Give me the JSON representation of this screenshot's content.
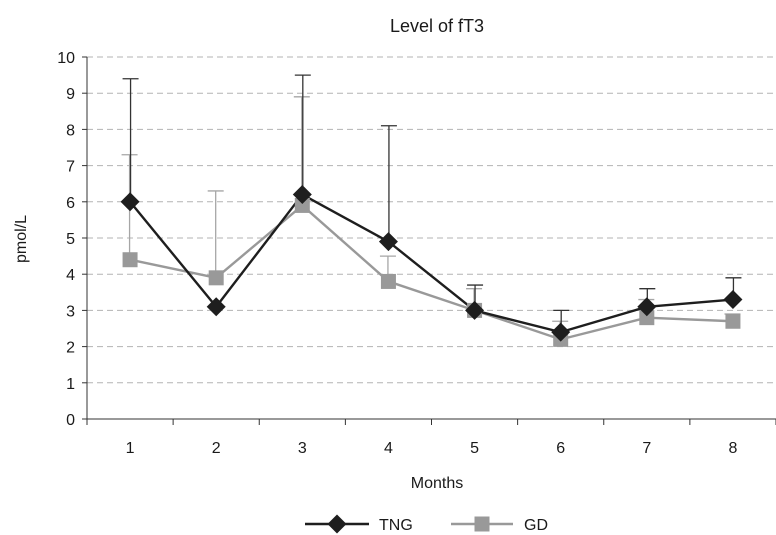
{
  "chart_data": {
    "type": "line",
    "title": "Level of fT3",
    "xlabel": "Months",
    "ylabel": "pmol/L",
    "categories": [
      "1",
      "2",
      "3",
      "4",
      "5",
      "6",
      "7",
      "8"
    ],
    "ylim": [
      0,
      10
    ],
    "yticks": [
      "0",
      "1",
      "2",
      "3",
      "4",
      "5",
      "6",
      "7",
      "8",
      "9",
      "10"
    ],
    "grid": "horizontal-dashed",
    "legend_position": "bottom",
    "series": [
      {
        "name": "TNG",
        "marker": "diamond",
        "color": "#1e1e1e",
        "values": [
          6.0,
          3.1,
          6.2,
          4.9,
          3.0,
          2.4,
          3.1,
          3.3
        ],
        "error_upper": [
          9.4,
          null,
          9.5,
          8.1,
          3.7,
          3.0,
          3.6,
          3.9
        ]
      },
      {
        "name": "GD",
        "marker": "square",
        "color": "#999999",
        "values": [
          4.4,
          3.9,
          5.9,
          3.8,
          3.0,
          2.2,
          2.8,
          2.7
        ],
        "error_upper": [
          7.3,
          6.3,
          8.9,
          4.5,
          3.6,
          2.7,
          3.3,
          2.9
        ]
      }
    ]
  }
}
